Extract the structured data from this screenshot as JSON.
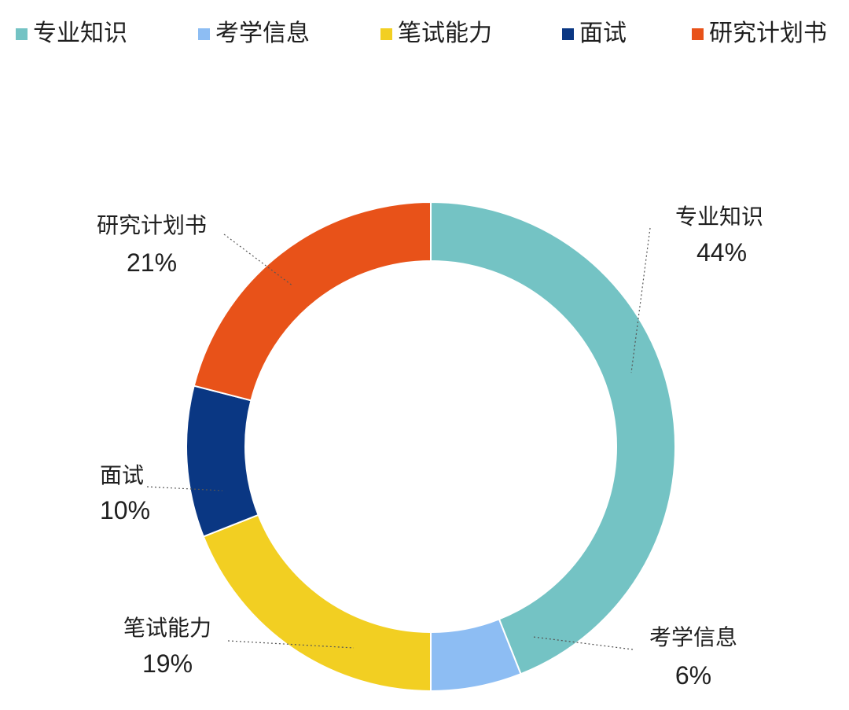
{
  "chart_data": {
    "type": "pie",
    "donut": true,
    "legend_position": "top",
    "categories": [
      "专业知识",
      "考学信息",
      "笔试能力",
      "面试",
      "研究计划书"
    ],
    "values": [
      44,
      6,
      19,
      10,
      21
    ],
    "value_labels": [
      "44%",
      "6%",
      "19%",
      "10%",
      "21%"
    ],
    "colors": [
      "#74C3C4",
      "#8DBDF3",
      "#F2CF22",
      "#0A3783",
      "#E85219"
    ]
  }
}
